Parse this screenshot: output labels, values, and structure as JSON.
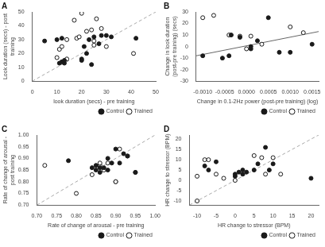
{
  "chart_data": [
    {
      "type": "scatter",
      "title": "A",
      "x_label": "look duration (secs) - pre training",
      "y_label": "Look duration (secs) - post training",
      "xlim": [
        0,
        50
      ],
      "ylim": [
        0,
        50
      ],
      "xticks": [
        0,
        10,
        20,
        30,
        40,
        50
      ],
      "yticks": [
        0,
        10,
        20,
        30,
        40,
        50
      ],
      "grid": false,
      "legend": "lower right",
      "series": [
        {
          "name": "Control",
          "color": "#1a1a1a",
          "marker": "circle",
          "x": [
            5,
            10,
            11,
            12,
            12,
            13,
            13,
            20,
            20,
            21,
            22,
            23,
            24,
            25,
            27,
            28,
            30,
            32,
            42
          ],
          "values": [
            29,
            30,
            13,
            14,
            31,
            13,
            15,
            15,
            16,
            25,
            20,
            30,
            12,
            32,
            27,
            33,
            33,
            32,
            31
          ]
        },
        {
          "name": "Trained",
          "color": "#1a1a1a",
          "marker": "hollow",
          "x": [
            10,
            11,
            12,
            14,
            14,
            17,
            18,
            19,
            20,
            22,
            24,
            25,
            25,
            26,
            28,
            30,
            41
          ],
          "values": [
            17,
            23,
            25,
            16,
            30,
            44,
            31,
            32,
            49,
            36,
            37,
            26,
            29,
            45,
            38,
            25,
            20
          ]
        },
        {
          "type": "line",
          "color": "#aaaaaa",
          "line_style": "dashed",
          "x": [
            0,
            50
          ],
          "values": [
            0,
            50
          ]
        }
      ]
    },
    {
      "type": "scatter",
      "title": "B",
      "x_label": "Change in 0.1-2Hz power (post-pre training) (log)",
      "y_label": "Change in look duration (post-pre training) (secs)",
      "xlim": [
        -0.00115,
        0.00165
      ],
      "ylim": [
        -30,
        30
      ],
      "xticks": [
        {
          "value": -0.001,
          "label": "-0.0010"
        },
        {
          "value": -0.0005,
          "label": "-0.0005"
        },
        {
          "value": 0,
          "label": "0.0000"
        },
        {
          "value": 0.0005,
          "label": "0.0005"
        },
        {
          "value": 0.001,
          "label": "0.0010"
        },
        {
          "value": 0.0015,
          "label": "0.0015"
        }
      ],
      "yticks": [
        -30,
        -20,
        -10,
        0,
        10,
        20,
        30
      ],
      "grid": false,
      "legend": "lower right",
      "series": [
        {
          "name": "Control",
          "color": "#1a1a1a",
          "marker": "circle",
          "x": [
            -0.001,
            -0.00055,
            -0.0004,
            -0.00035,
            -0.00015,
            0.0001,
            0.0001,
            0.00025,
            0.0005,
            0.00075,
            0.001,
            0.0015
          ],
          "values": [
            -8,
            -10,
            -8,
            10,
            8,
            0,
            -2,
            5,
            25,
            -5,
            -5,
            2
          ]
        },
        {
          "name": "Trained",
          "color": "#1a1a1a",
          "marker": "hollow",
          "x": [
            -0.001,
            -0.00075,
            -0.0004,
            -0.00015,
            0.0,
            0.0001,
            0.00035,
            0.001,
            0.0013
          ],
          "values": [
            25,
            27,
            10,
            9,
            -2,
            9,
            2,
            17,
            12
          ]
        },
        {
          "type": "line",
          "color": "#666666",
          "line_style": "solid",
          "x": [
            -0.00115,
            0.00165
          ],
          "values": [
            -8,
            13
          ]
        }
      ]
    },
    {
      "type": "scatter",
      "title": "C",
      "x_label": "Rate of change of arousal - pre training",
      "y_label": "Rate of change of arousal - post training",
      "xlim": [
        0.7,
        1.0
      ],
      "ylim": [
        0.7,
        1.0
      ],
      "xticks": [
        {
          "value": 0.7,
          "label": "0.70"
        },
        0.75,
        {
          "value": 0.8,
          "label": "0.80"
        },
        0.85,
        {
          "value": 0.9,
          "label": "0.90"
        },
        0.95,
        {
          "value": 1.0,
          "label": "1.00"
        }
      ],
      "yticks": [
        {
          "value": 0.7,
          "label": "0.70"
        },
        0.75,
        {
          "value": 0.8,
          "label": "0.80"
        },
        0.85,
        {
          "value": 0.9,
          "label": "0.90"
        },
        0.95,
        {
          "value": 1.0,
          "label": "1.00"
        }
      ],
      "grid": false,
      "legend": "lower right",
      "series": [
        {
          "name": "Control",
          "color": "#1a1a1a",
          "marker": "circle",
          "x": [
            0.78,
            0.84,
            0.85,
            0.85,
            0.86,
            0.86,
            0.87,
            0.88,
            0.88,
            0.89,
            0.9,
            0.91,
            0.92,
            0.93,
            0.95
          ],
          "values": [
            0.89,
            0.86,
            0.85,
            0.87,
            0.86,
            0.84,
            0.86,
            0.9,
            0.85,
            0.88,
            0.94,
            0.88,
            0.92,
            0.91,
            0.84
          ]
        },
        {
          "name": "Trained",
          "color": "#1a1a1a",
          "marker": "hollow",
          "x": [
            0.72,
            0.8,
            0.84,
            0.86,
            0.86,
            0.87,
            0.88,
            0.9,
            0.9,
            0.91,
            0.93,
            0.95
          ],
          "values": [
            0.87,
            0.75,
            0.83,
            0.87,
            0.88,
            0.85,
            0.88,
            0.8,
            0.8,
            0.94,
            0.91,
            0.84
          ]
        },
        {
          "type": "line",
          "color": "#aaaaaa",
          "line_style": "dashed",
          "x": [
            0.7,
            1.0
          ],
          "values": [
            0.7,
            1.0
          ]
        }
      ]
    },
    {
      "type": "scatter",
      "title": "D",
      "x_label": "HR change to stressor (BPM)",
      "y_label": "HR change to stressor (BPM)",
      "xlim": [
        -12,
        22
      ],
      "ylim": [
        -12,
        22
      ],
      "xticks": [
        -10,
        -5,
        0,
        5,
        10,
        15,
        20
      ],
      "yticks": [
        -10,
        -5,
        0,
        5,
        10,
        15,
        20
      ],
      "grid": false,
      "legend": "lower right",
      "series": [
        {
          "name": "Control",
          "color": "#1a1a1a",
          "marker": "circle",
          "x": [
            -8,
            -7,
            -5,
            0,
            0,
            1,
            2,
            2,
            3,
            5,
            6,
            8,
            9,
            10,
            20
          ],
          "values": [
            7,
            5,
            9,
            2,
            3,
            4,
            3,
            5,
            4,
            5,
            8,
            16,
            5,
            8,
            1
          ]
        },
        {
          "name": "Trained",
          "color": "#1a1a1a",
          "marker": "hollow",
          "x": [
            -10,
            -10,
            -8,
            -7,
            -5,
            -3,
            0,
            5,
            7,
            8,
            10,
            12
          ],
          "values": [
            -10,
            2,
            10,
            10,
            3,
            1,
            0,
            12,
            11,
            3,
            11,
            3
          ]
        },
        {
          "type": "line",
          "color": "#aaaaaa",
          "line_style": "dashed",
          "x": [
            -12,
            22
          ],
          "values": [
            -12,
            22
          ]
        }
      ]
    }
  ]
}
